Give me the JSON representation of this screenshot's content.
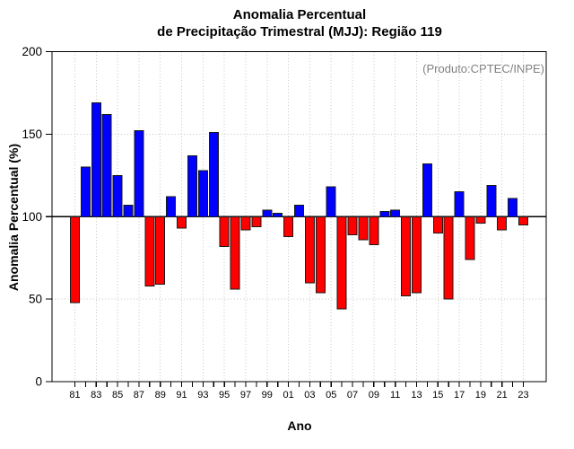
{
  "figure": {
    "background": "#ffffff",
    "title_line1": "Anomalia Percentual",
    "title_line2": "de Precipitação Trimestral (MJJ): Região 119",
    "annotation": "(Produto:CPTEC/INPE)",
    "ylabel": "Anomalia Percentual (%)",
    "xlabel": "Ano"
  },
  "chart_data": {
    "type": "bar",
    "title": "Anomalia Percentual de Precipitação Trimestral (MJJ): Região 119",
    "annotation": "(Produto:CPTEC/INPE)",
    "xlabel": "Ano",
    "ylabel": "Anomalia Percentual (%)",
    "baseline": 100,
    "ylim": [
      0,
      200
    ],
    "yticks": [
      0,
      50,
      100,
      150,
      200
    ],
    "grid": true,
    "legend": false,
    "xtick_labels": [
      "81",
      "83",
      "85",
      "87",
      "89",
      "91",
      "93",
      "95",
      "97",
      "99",
      "01",
      "03",
      "05",
      "07",
      "09",
      "11",
      "13",
      "15",
      "17",
      "19",
      "21",
      "23"
    ],
    "categories": [
      "81",
      "82",
      "83",
      "84",
      "85",
      "86",
      "87",
      "88",
      "89",
      "90",
      "91",
      "92",
      "93",
      "94",
      "95",
      "96",
      "97",
      "98",
      "99",
      "00",
      "01",
      "02",
      "03",
      "04",
      "05",
      "06",
      "07",
      "08",
      "09",
      "10",
      "11",
      "12",
      "13",
      "14",
      "15",
      "16",
      "17",
      "18",
      "19",
      "20",
      "21",
      "22",
      "23"
    ],
    "values": [
      48,
      130,
      169,
      162,
      125,
      107,
      152,
      58,
      59,
      112,
      93,
      137,
      128,
      151,
      82,
      56,
      92,
      94,
      104,
      102,
      88,
      107,
      60,
      54,
      118,
      44,
      89,
      86,
      83,
      103,
      104,
      52,
      54,
      132,
      90,
      50,
      115,
      74,
      96,
      119,
      92,
      111,
      95
    ],
    "colors": {
      "above_baseline": "#0000FF",
      "below_baseline": "#FF0000",
      "bar_border": "#1A1A1A",
      "baseline_line": "#000000",
      "grid": "#C4C4C4",
      "axis": "#000000",
      "annotation": "#808080"
    }
  }
}
